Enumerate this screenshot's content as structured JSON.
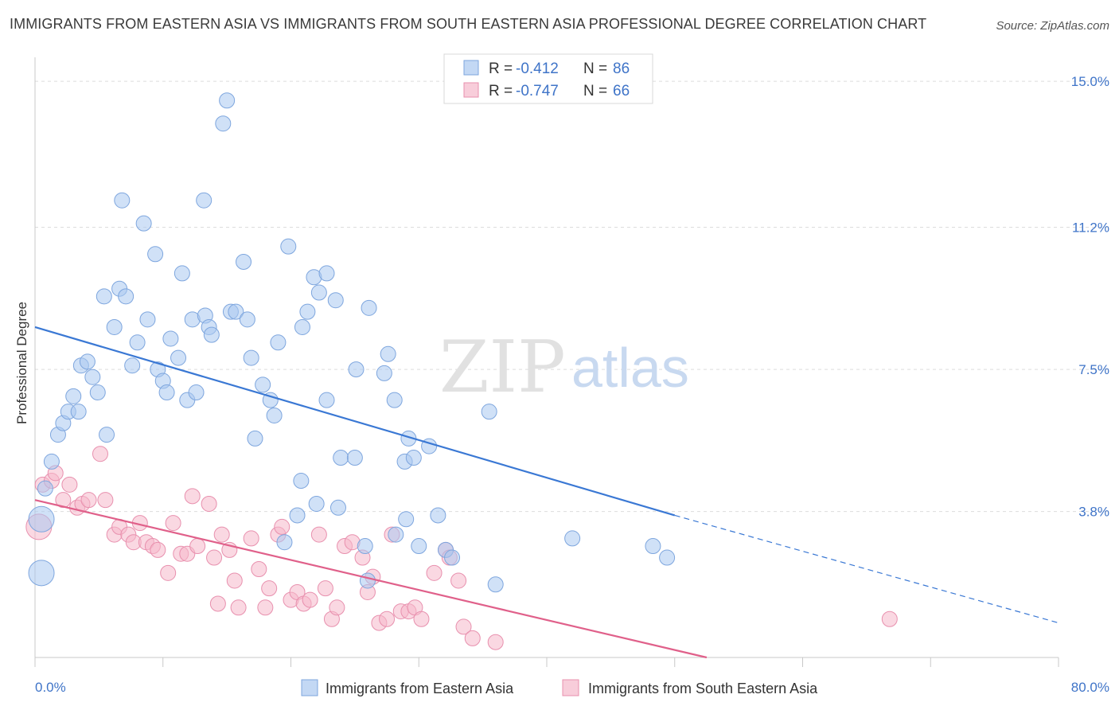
{
  "title": "IMMIGRANTS FROM EASTERN ASIA VS IMMIGRANTS FROM SOUTH EASTERN ASIA PROFESSIONAL DEGREE CORRELATION CHART",
  "source": "Source: ZipAtlas.com",
  "watermark": {
    "zip": "ZIP",
    "atlas": "atlas"
  },
  "legend": {
    "rows": [
      {
        "r_label": "R = ",
        "r_value": "-0.412",
        "n_label": "N = ",
        "n_value": "86",
        "color": "#a9c8f0"
      },
      {
        "r_label": "R = ",
        "r_value": "-0.747",
        "n_label": "N = ",
        "n_value": "66",
        "color": "#f5b8cb"
      }
    ]
  },
  "bottom_legend": [
    "Immigrants from Eastern Asia",
    "Immigrants from South Eastern Asia"
  ],
  "colors": {
    "blue": "#a9c8f0",
    "blue_line": "#3a78d4",
    "pink": "#f5b8cb",
    "pink_line": "#e0608a",
    "axis_label": "#3f74c8"
  },
  "chart_data": {
    "type": "scatter",
    "xlabel": "",
    "ylabel": "Professional Degree",
    "xlim": [
      0,
      80
    ],
    "ylim": [
      0,
      15.5
    ],
    "x_tick_labels": [
      "0.0%",
      "80.0%"
    ],
    "y_ticks": [
      3.8,
      7.5,
      11.2,
      15.0
    ],
    "y_tick_labels": [
      "3.8%",
      "7.5%",
      "11.2%",
      "15.0%"
    ],
    "grid": true,
    "series": [
      {
        "name": "Immigrants from Eastern Asia",
        "points": [
          [
            0.5,
            2.2
          ],
          [
            0.5,
            3.6
          ],
          [
            0.8,
            4.4
          ],
          [
            1.3,
            5.1
          ],
          [
            1.8,
            5.8
          ],
          [
            2.2,
            6.1
          ],
          [
            2.6,
            6.4
          ],
          [
            3.0,
            6.8
          ],
          [
            3.4,
            6.4
          ],
          [
            3.6,
            7.6
          ],
          [
            4.1,
            7.7
          ],
          [
            4.5,
            7.3
          ],
          [
            4.9,
            6.9
          ],
          [
            5.4,
            9.4
          ],
          [
            5.6,
            5.8
          ],
          [
            6.2,
            8.6
          ],
          [
            6.6,
            9.6
          ],
          [
            7.1,
            9.4
          ],
          [
            6.8,
            11.9
          ],
          [
            7.6,
            7.6
          ],
          [
            8.0,
            8.2
          ],
          [
            8.5,
            11.3
          ],
          [
            8.8,
            8.8
          ],
          [
            9.4,
            10.5
          ],
          [
            9.6,
            7.5
          ],
          [
            10.0,
            7.2
          ],
          [
            10.3,
            6.9
          ],
          [
            10.6,
            8.3
          ],
          [
            11.2,
            7.8
          ],
          [
            11.5,
            10.0
          ],
          [
            11.9,
            6.7
          ],
          [
            12.3,
            8.8
          ],
          [
            12.6,
            6.9
          ],
          [
            13.2,
            11.9
          ],
          [
            13.3,
            8.9
          ],
          [
            13.6,
            8.6
          ],
          [
            13.8,
            8.4
          ],
          [
            14.7,
            13.9
          ],
          [
            15.0,
            14.5
          ],
          [
            15.3,
            9.0
          ],
          [
            15.7,
            9.0
          ],
          [
            16.3,
            10.3
          ],
          [
            16.6,
            8.8
          ],
          [
            16.9,
            7.8
          ],
          [
            17.2,
            5.7
          ],
          [
            17.8,
            7.1
          ],
          [
            18.4,
            6.7
          ],
          [
            18.7,
            6.3
          ],
          [
            19.0,
            8.2
          ],
          [
            19.5,
            3.0
          ],
          [
            19.8,
            10.7
          ],
          [
            20.5,
            3.7
          ],
          [
            20.8,
            4.6
          ],
          [
            20.9,
            8.6
          ],
          [
            21.3,
            9.0
          ],
          [
            21.8,
            9.9
          ],
          [
            22.0,
            4.0
          ],
          [
            22.2,
            9.5
          ],
          [
            22.8,
            10.0
          ],
          [
            22.8,
            6.7
          ],
          [
            23.5,
            9.3
          ],
          [
            23.7,
            3.9
          ],
          [
            23.9,
            5.2
          ],
          [
            25.0,
            5.2
          ],
          [
            25.1,
            7.5
          ],
          [
            25.8,
            2.9
          ],
          [
            26.0,
            2.0
          ],
          [
            26.1,
            9.1
          ],
          [
            27.3,
            7.4
          ],
          [
            27.6,
            7.9
          ],
          [
            28.1,
            6.7
          ],
          [
            28.2,
            3.2
          ],
          [
            28.9,
            5.1
          ],
          [
            29.0,
            3.6
          ],
          [
            29.2,
            5.7
          ],
          [
            29.6,
            5.2
          ],
          [
            30.0,
            2.9
          ],
          [
            30.8,
            5.5
          ],
          [
            31.5,
            3.7
          ],
          [
            32.1,
            2.8
          ],
          [
            32.6,
            2.6
          ],
          [
            35.5,
            6.4
          ],
          [
            36.0,
            1.9
          ],
          [
            42.0,
            3.1
          ],
          [
            48.3,
            2.9
          ],
          [
            49.4,
            2.6
          ]
        ],
        "trend": {
          "x0": 0,
          "y0": 8.6,
          "x1": 50,
          "y1": 3.7,
          "x_dash_end": 80,
          "y_dash_end": 0.9
        }
      },
      {
        "name": "Immigrants from South Eastern Asia",
        "points": [
          [
            0.3,
            3.4
          ],
          [
            0.6,
            4.5
          ],
          [
            1.3,
            4.6
          ],
          [
            1.6,
            4.8
          ],
          [
            2.2,
            4.1
          ],
          [
            2.7,
            4.5
          ],
          [
            3.3,
            3.9
          ],
          [
            3.7,
            4.0
          ],
          [
            4.2,
            4.1
          ],
          [
            5.1,
            5.3
          ],
          [
            5.5,
            4.1
          ],
          [
            6.2,
            3.2
          ],
          [
            6.6,
            3.4
          ],
          [
            7.3,
            3.2
          ],
          [
            7.7,
            3.0
          ],
          [
            8.2,
            3.5
          ],
          [
            8.7,
            3.0
          ],
          [
            9.2,
            2.9
          ],
          [
            9.6,
            2.8
          ],
          [
            10.4,
            2.2
          ],
          [
            10.8,
            3.5
          ],
          [
            11.4,
            2.7
          ],
          [
            11.9,
            2.7
          ],
          [
            12.3,
            4.2
          ],
          [
            12.7,
            2.9
          ],
          [
            13.6,
            4.0
          ],
          [
            14.0,
            2.6
          ],
          [
            14.3,
            1.4
          ],
          [
            14.6,
            3.2
          ],
          [
            15.2,
            2.8
          ],
          [
            15.6,
            2.0
          ],
          [
            15.9,
            1.3
          ],
          [
            16.9,
            3.1
          ],
          [
            17.5,
            2.3
          ],
          [
            18.0,
            1.3
          ],
          [
            18.3,
            1.8
          ],
          [
            19.0,
            3.2
          ],
          [
            19.3,
            3.4
          ],
          [
            20.0,
            1.5
          ],
          [
            20.5,
            1.7
          ],
          [
            21.0,
            1.4
          ],
          [
            21.5,
            1.5
          ],
          [
            22.2,
            3.2
          ],
          [
            22.7,
            1.8
          ],
          [
            23.2,
            1.0
          ],
          [
            23.6,
            1.3
          ],
          [
            24.2,
            2.9
          ],
          [
            24.8,
            3.0
          ],
          [
            25.6,
            2.6
          ],
          [
            26.0,
            1.7
          ],
          [
            26.4,
            2.1
          ],
          [
            26.9,
            0.9
          ],
          [
            27.5,
            1.0
          ],
          [
            27.9,
            3.2
          ],
          [
            28.6,
            1.2
          ],
          [
            29.2,
            1.2
          ],
          [
            29.7,
            1.3
          ],
          [
            30.2,
            1.0
          ],
          [
            31.2,
            2.2
          ],
          [
            32.1,
            2.8
          ],
          [
            32.4,
            2.6
          ],
          [
            33.1,
            2.0
          ],
          [
            33.5,
            0.8
          ],
          [
            34.2,
            0.5
          ],
          [
            36.0,
            0.4
          ],
          [
            66.8,
            1.0
          ]
        ],
        "trend": {
          "x0": 0,
          "y0": 4.1,
          "x1": 52.5,
          "y1": 0
        }
      }
    ]
  }
}
